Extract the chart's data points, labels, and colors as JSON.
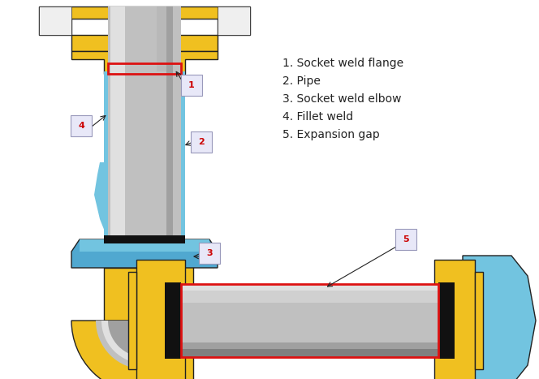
{
  "bg_color": "#ffffff",
  "yellow": "#F0C020",
  "blue": "#72C4E0",
  "blue_dark": "#50A8D0",
  "pipe_light": "#E0E0E0",
  "pipe_mid": "#C0C0C0",
  "pipe_dark": "#888888",
  "pipe_very_dark": "#606060",
  "red_border": "#DD1111",
  "black": "#111111",
  "dark_outline": "#222222",
  "label_bg": "#E8E8F8",
  "label_border": "#9999BB",
  "label_color": "#CC0000",
  "text_color": "#222222",
  "legend_items": [
    "1. Socket weld flange",
    "2. Pipe",
    "3. Socket weld elbow",
    "4. Fillet weld",
    "5. Expansion gap"
  ]
}
